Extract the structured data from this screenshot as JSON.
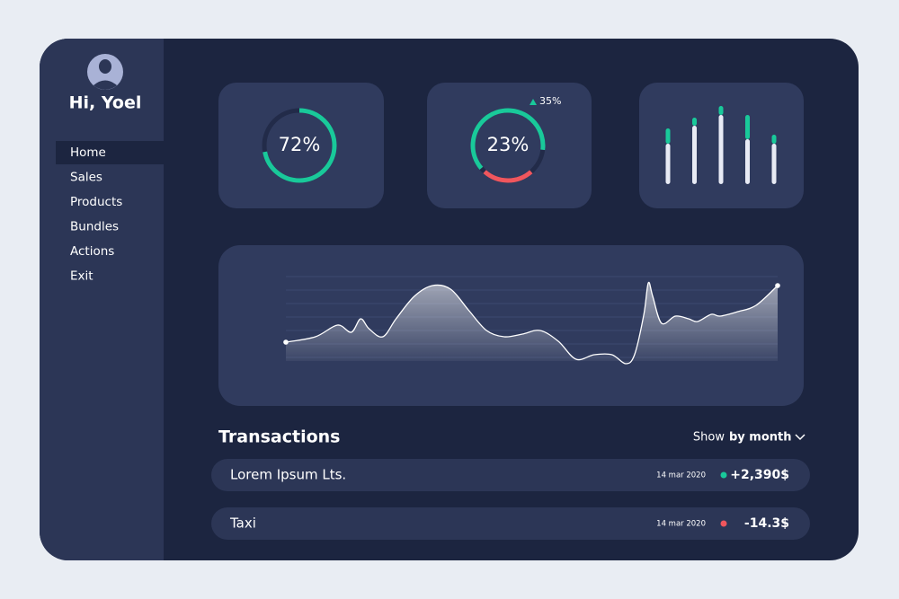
{
  "user": {
    "greeting": "Hi, Yoel"
  },
  "nav": [
    "Home",
    "Sales",
    "Products",
    "Bundles",
    "Actions",
    "Exit"
  ],
  "gauges": [
    {
      "value": 72,
      "label": "72%"
    },
    {
      "value": 23,
      "label": "23%",
      "change": "35%"
    }
  ],
  "bars": {
    "green": [
      17,
      9,
      10,
      27,
      10
    ],
    "white": [
      45,
      65,
      77,
      50,
      45
    ]
  },
  "trend": {
    "x": [
      0,
      6,
      10.5,
      13.3,
      15.2,
      16.9,
      19.7,
      22.4,
      26.1,
      29.8,
      33.5,
      37.1,
      40.8,
      44.4,
      48.1,
      51.7,
      55.4,
      59,
      62.7,
      66.3,
      69.1,
      70.9,
      72.8,
      73.7,
      74.6,
      76.4,
      79.2,
      81.9,
      83.7,
      86.5,
      88.3,
      91.9,
      95.6,
      100
    ],
    "values": [
      29,
      35,
      48,
      40,
      55,
      44,
      35,
      55,
      80,
      92,
      88,
      65,
      42,
      35,
      38,
      42,
      30,
      10,
      15,
      15,
      5,
      15,
      60,
      95,
      80,
      50,
      58,
      55,
      52,
      60,
      58,
      63,
      70,
      92
    ]
  },
  "transactions": {
    "title": "Transactions",
    "filter_prefix": "Show",
    "filter": "by month",
    "rows": [
      {
        "name": "Lorem Ipsum Lts.",
        "date": "14 mar 2020",
        "amount": "+2,390$",
        "status": "up"
      },
      {
        "name": "Taxi",
        "date": "14 mar 2020",
        "amount": "-14.3$",
        "status": "down"
      }
    ]
  }
}
